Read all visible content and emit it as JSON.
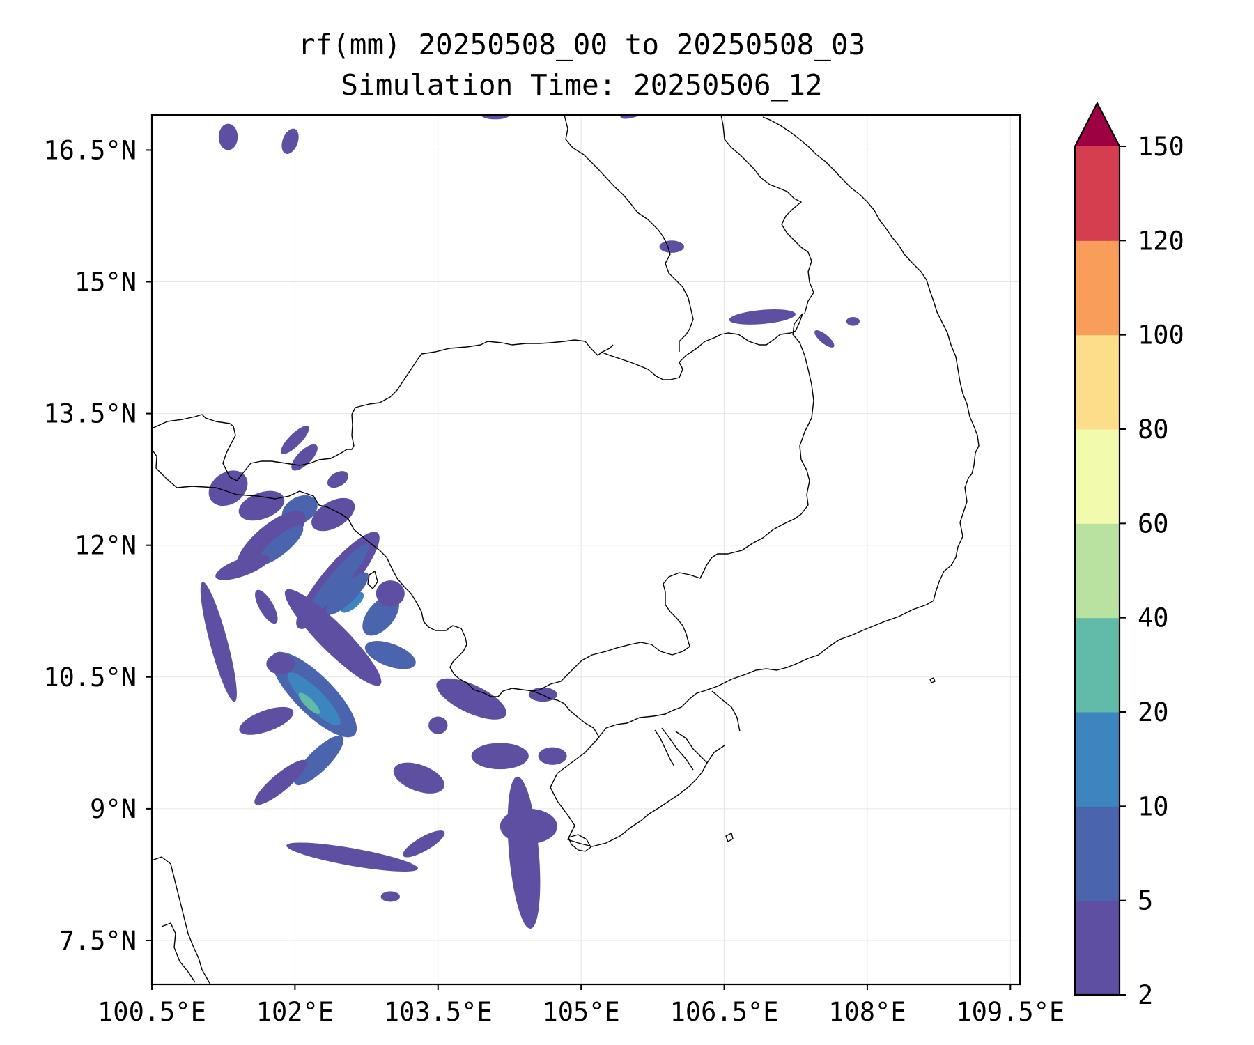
{
  "title_lines": [
    "rf(mm) 20250508_00 to 20250508_03",
    "Simulation Time: 20250506_12"
  ],
  "map": {
    "lon_range": [
      100.5,
      109.6
    ],
    "lat_range": [
      7.0,
      16.9
    ],
    "lon_ticks": [
      {
        "value": 100.5,
        "label": "100.5°E"
      },
      {
        "value": 102,
        "label": "102°E"
      },
      {
        "value": 103.5,
        "label": "103.5°E"
      },
      {
        "value": 105,
        "label": "105°E"
      },
      {
        "value": 106.5,
        "label": "106.5°E"
      },
      {
        "value": 108,
        "label": "108°E"
      },
      {
        "value": 109.5,
        "label": "109.5°E"
      }
    ],
    "lat_ticks": [
      {
        "value": 16.5,
        "label": "16.5°N"
      },
      {
        "value": 15,
        "label": "15°N"
      },
      {
        "value": 13.5,
        "label": "13.5°N"
      },
      {
        "value": 12,
        "label": "12°N"
      },
      {
        "value": 10.5,
        "label": "10.5°N"
      },
      {
        "value": 9,
        "label": "9°N"
      },
      {
        "value": 7.5,
        "label": "7.5°N"
      }
    ],
    "grid": true,
    "colorbar": {
      "levels": [
        {
          "value": 2,
          "label": "2"
        },
        {
          "value": 5,
          "label": "5"
        },
        {
          "value": 10,
          "label": "10"
        },
        {
          "value": 20,
          "label": "20"
        },
        {
          "value": 40,
          "label": "40"
        },
        {
          "value": 60,
          "label": "60"
        },
        {
          "value": 80,
          "label": "80"
        },
        {
          "value": 100,
          "label": "100"
        },
        {
          "value": 120,
          "label": "120"
        },
        {
          "value": 150,
          "label": "150"
        }
      ],
      "colors": [
        "#5e4fa2",
        "#4a65ad",
        "#3d85bf",
        "#62bba8",
        "#b9e1a0",
        "#f2faae",
        "#fcdd8a",
        "#f99d5a",
        "#d53e4f"
      ],
      "extend_color": "#9e0142",
      "extend": "max"
    },
    "rain_cells": [
      {
        "lon": 101.3,
        "lat": 12.65,
        "rx": 0.22,
        "ry": 0.18,
        "angle": -35,
        "level": 0
      },
      {
        "lon": 101.65,
        "lat": 12.45,
        "rx": 0.25,
        "ry": 0.15,
        "angle": -20,
        "level": 0
      },
      {
        "lon": 102.05,
        "lat": 12.4,
        "rx": 0.2,
        "ry": 0.15,
        "angle": -30,
        "level": 1
      },
      {
        "lon": 102.4,
        "lat": 12.35,
        "rx": 0.25,
        "ry": 0.15,
        "angle": -30,
        "level": 0
      },
      {
        "lon": 102.1,
        "lat": 13.0,
        "rx": 0.18,
        "ry": 0.08,
        "angle": -45,
        "level": 0
      },
      {
        "lon": 102.45,
        "lat": 12.75,
        "rx": 0.12,
        "ry": 0.08,
        "angle": -30,
        "level": 0
      },
      {
        "lon": 101.75,
        "lat": 12.05,
        "rx": 0.45,
        "ry": 0.18,
        "angle": -40,
        "level": 0
      },
      {
        "lon": 101.85,
        "lat": 12.0,
        "rx": 0.3,
        "ry": 0.1,
        "angle": -40,
        "level": 1
      },
      {
        "lon": 102.45,
        "lat": 11.6,
        "rx": 0.65,
        "ry": 0.18,
        "angle": -50,
        "level": 0
      },
      {
        "lon": 102.45,
        "lat": 11.6,
        "rx": 0.5,
        "ry": 0.1,
        "angle": -50,
        "level": 1
      },
      {
        "lon": 102.6,
        "lat": 11.35,
        "rx": 0.15,
        "ry": 0.07,
        "angle": -40,
        "level": 2
      },
      {
        "lon": 102.55,
        "lat": 11.45,
        "rx": 0.3,
        "ry": 0.1,
        "angle": -45,
        "level": 1
      },
      {
        "lon": 102.9,
        "lat": 11.2,
        "rx": 0.25,
        "ry": 0.15,
        "angle": -50,
        "level": 1
      },
      {
        "lon": 102.4,
        "lat": 10.95,
        "rx": 0.7,
        "ry": 0.16,
        "angle": 45,
        "level": 0
      },
      {
        "lon": 102.2,
        "lat": 10.3,
        "rx": 0.6,
        "ry": 0.22,
        "angle": 45,
        "level": 1
      },
      {
        "lon": 102.2,
        "lat": 10.25,
        "rx": 0.38,
        "ry": 0.11,
        "angle": 45,
        "level": 2
      },
      {
        "lon": 102.15,
        "lat": 10.2,
        "rx": 0.15,
        "ry": 0.05,
        "angle": 45,
        "level": 3
      },
      {
        "lon": 101.7,
        "lat": 10.0,
        "rx": 0.3,
        "ry": 0.12,
        "angle": -20,
        "level": 0
      },
      {
        "lon": 102.25,
        "lat": 9.55,
        "rx": 0.35,
        "ry": 0.12,
        "angle": -45,
        "level": 1
      },
      {
        "lon": 103.0,
        "lat": 10.75,
        "rx": 0.28,
        "ry": 0.13,
        "angle": 20,
        "level": 1
      },
      {
        "lon": 101.2,
        "lat": 10.9,
        "rx": 0.65,
        "ry": 0.1,
        "angle": 75,
        "level": 0
      },
      {
        "lon": 101.45,
        "lat": 11.75,
        "rx": 0.3,
        "ry": 0.1,
        "angle": -20,
        "level": 0
      },
      {
        "lon": 101.7,
        "lat": 11.3,
        "rx": 0.2,
        "ry": 0.08,
        "angle": 60,
        "level": 0
      },
      {
        "lon": 101.85,
        "lat": 10.65,
        "rx": 0.15,
        "ry": 0.12,
        "angle": 0,
        "level": 0
      },
      {
        "lon": 101.85,
        "lat": 9.3,
        "rx": 0.35,
        "ry": 0.1,
        "angle": -40,
        "level": 0
      },
      {
        "lon": 102.6,
        "lat": 8.45,
        "rx": 0.7,
        "ry": 0.1,
        "angle": 10,
        "level": 0
      },
      {
        "lon": 103.35,
        "lat": 8.6,
        "rx": 0.25,
        "ry": 0.08,
        "angle": -30,
        "level": 0
      },
      {
        "lon": 103.0,
        "lat": 8.0,
        "rx": 0.1,
        "ry": 0.06,
        "angle": 0,
        "level": 0
      },
      {
        "lon": 103.3,
        "lat": 9.35,
        "rx": 0.28,
        "ry": 0.15,
        "angle": 20,
        "level": 0
      },
      {
        "lon": 103.85,
        "lat": 10.25,
        "rx": 0.4,
        "ry": 0.16,
        "angle": 25,
        "level": 0
      },
      {
        "lon": 104.15,
        "lat": 9.6,
        "rx": 0.3,
        "ry": 0.15,
        "angle": 0,
        "level": 0
      },
      {
        "lon": 103.5,
        "lat": 9.95,
        "rx": 0.1,
        "ry": 0.1,
        "angle": 0,
        "level": 0
      },
      {
        "lon": 104.4,
        "lat": 8.5,
        "rx": 0.8,
        "ry": 0.17,
        "angle": 85,
        "level": 0
      },
      {
        "lon": 104.45,
        "lat": 8.8,
        "rx": 0.3,
        "ry": 0.2,
        "angle": 0,
        "level": 0
      },
      {
        "lon": 104.7,
        "lat": 9.6,
        "rx": 0.15,
        "ry": 0.1,
        "angle": 0,
        "level": 0
      },
      {
        "lon": 104.6,
        "lat": 10.3,
        "rx": 0.15,
        "ry": 0.08,
        "angle": 0,
        "level": 0
      },
      {
        "lon": 103.0,
        "lat": 11.45,
        "rx": 0.15,
        "ry": 0.15,
        "angle": 0,
        "level": 0
      },
      {
        "lon": 102.0,
        "lat": 13.2,
        "rx": 0.2,
        "ry": 0.07,
        "angle": -45,
        "level": 0
      },
      {
        "lon": 101.3,
        "lat": 16.65,
        "rx": 0.1,
        "ry": 0.15,
        "angle": 0,
        "level": 0
      },
      {
        "lon": 101.95,
        "lat": 16.6,
        "rx": 0.08,
        "ry": 0.15,
        "angle": 20,
        "level": 0
      },
      {
        "lon": 105.6,
        "lat": 16.95,
        "rx": 0.2,
        "ry": 0.06,
        "angle": -20,
        "level": 0
      },
      {
        "lon": 104.1,
        "lat": 16.9,
        "rx": 0.15,
        "ry": 0.05,
        "angle": 0,
        "level": 0
      },
      {
        "lon": 105.95,
        "lat": 15.4,
        "rx": 0.13,
        "ry": 0.07,
        "angle": 0,
        "level": 0
      },
      {
        "lon": 106.9,
        "lat": 14.6,
        "rx": 0.35,
        "ry": 0.08,
        "angle": -5,
        "level": 0
      },
      {
        "lon": 107.55,
        "lat": 14.35,
        "rx": 0.13,
        "ry": 0.05,
        "angle": 40,
        "level": 0
      },
      {
        "lon": 107.85,
        "lat": 14.55,
        "rx": 0.07,
        "ry": 0.05,
        "angle": 0,
        "level": 0
      }
    ]
  }
}
